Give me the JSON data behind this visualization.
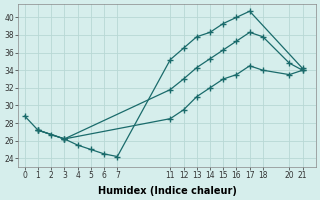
{
  "xlabel": "Humidex (Indice chaleur)",
  "bg_color": "#d6eeec",
  "line_color": "#1a6b6b",
  "grid_color": "#b8d8d5",
  "xlim": [
    -0.5,
    22
  ],
  "ylim": [
    23,
    41.5
  ],
  "xticks": [
    0,
    1,
    2,
    3,
    4,
    5,
    6,
    7,
    11,
    12,
    13,
    14,
    15,
    16,
    17,
    18,
    20,
    21
  ],
  "yticks": [
    24,
    26,
    28,
    30,
    32,
    34,
    36,
    38,
    40
  ],
  "line1_x": [
    0,
    1,
    2,
    3,
    4,
    5,
    6,
    7,
    11,
    12,
    13,
    14,
    15,
    16,
    17,
    21
  ],
  "line1_y": [
    28.8,
    27.2,
    26.7,
    26.2,
    25.5,
    25.0,
    24.5,
    24.2,
    35.2,
    36.5,
    37.8,
    38.3,
    39.3,
    40.0,
    40.7,
    34.2
  ],
  "line2_x": [
    1,
    3,
    11,
    12,
    13,
    14,
    15,
    16,
    17,
    18,
    20,
    21
  ],
  "line2_y": [
    27.2,
    26.2,
    28.5,
    29.5,
    31.0,
    32.0,
    33.0,
    33.5,
    34.5,
    34.0,
    33.5,
    34.0
  ],
  "line3_x": [
    1,
    3,
    11,
    12,
    13,
    14,
    15,
    16,
    17,
    18,
    20,
    21
  ],
  "line3_y": [
    27.2,
    26.2,
    31.8,
    33.0,
    34.3,
    35.3,
    36.3,
    37.3,
    38.3,
    37.8,
    34.8,
    34.0
  ],
  "marker": "+",
  "markersize": 4.0,
  "linewidth": 0.9
}
